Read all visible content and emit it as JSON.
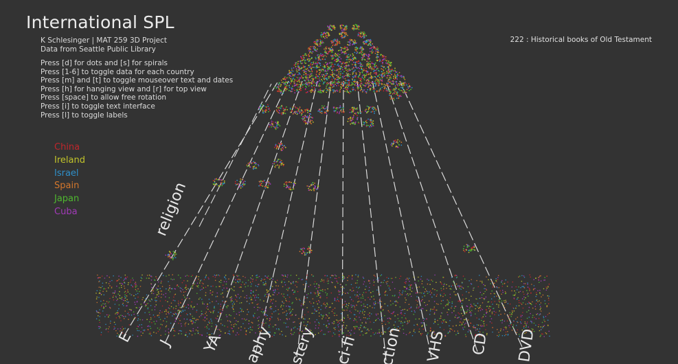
{
  "app": {
    "title": "International SPL",
    "author": "K Schlesinger | MAT 259 3D Project",
    "source": "Data from Seattle Public Library"
  },
  "help": [
    "Press [d] for dots and [s] for spirals",
    "Press [1-6] to toggle data for each country",
    "Press [m] and [t] to toggle mouseover text and dates",
    "Press [h] for hanging view and [r] for top view",
    "Press [space] to allow free rotation",
    "Press [i] to toggle text interface",
    "Press [l] to toggle labels"
  ],
  "legend": [
    {
      "label": "China",
      "color": "#c0262b"
    },
    {
      "label": "Ireland",
      "color": "#c2c42a"
    },
    {
      "label": "Israel",
      "color": "#2f8fc8"
    },
    {
      "label": "Spain",
      "color": "#d4772c"
    },
    {
      "label": "Japan",
      "color": "#4fb82f"
    },
    {
      "label": "Cuba",
      "color": "#a23ab8"
    }
  ],
  "selection": "222 : Historical books of Old Testament",
  "axes": [
    {
      "label": "religion"
    },
    {
      "label": "E"
    },
    {
      "label": "J"
    },
    {
      "label": "YA"
    },
    {
      "label": "aphy"
    },
    {
      "label": "stery"
    },
    {
      "label": "ci-fi"
    },
    {
      "label": "ction"
    },
    {
      "label": "VHS"
    },
    {
      "label": "CD"
    },
    {
      "label": "DVD"
    }
  ]
}
